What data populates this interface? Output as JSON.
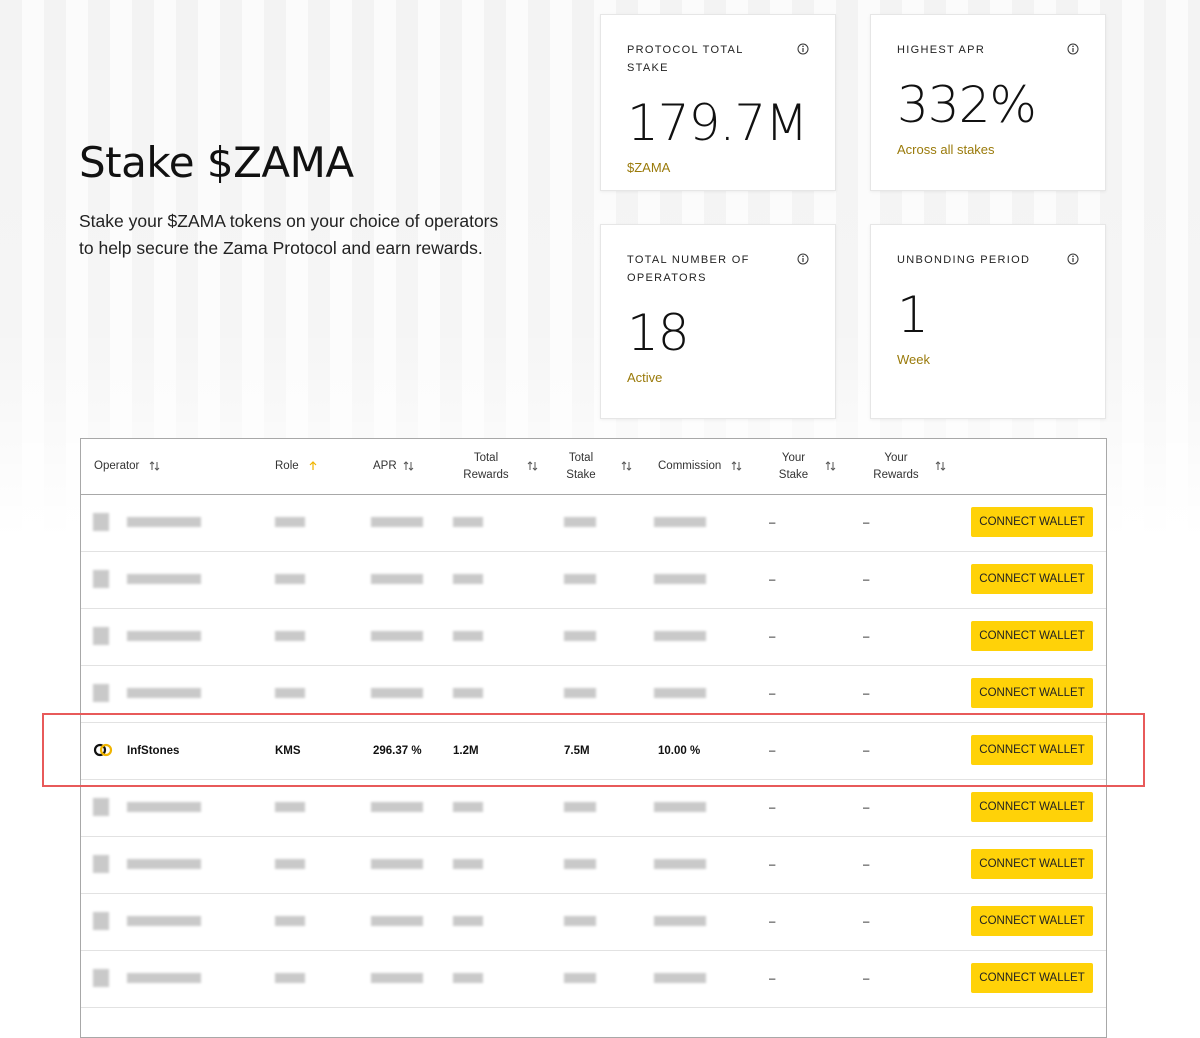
{
  "header": {
    "title": "Stake $ZAMA",
    "description": "Stake your $ZAMA tokens on your choice of operators to help secure the Zama Protocol and earn rewards."
  },
  "stats": [
    {
      "label": "PROTOCOL TOTAL STAKE",
      "value": "179.7M",
      "note": "$ZAMA"
    },
    {
      "label": "HIGHEST APR",
      "value": "332%",
      "note": "Across all stakes"
    },
    {
      "label": "TOTAL NUMBER OF OPERATORS",
      "value": "18",
      "note": "Active"
    },
    {
      "label": "UNBONDING PERIOD",
      "value": "1",
      "note": "Week"
    }
  ],
  "table": {
    "columns": [
      "Operator",
      "Role",
      "APR",
      "Total Rewards",
      "Total Stake",
      "Commission",
      "Your Stake",
      "Your Rewards"
    ],
    "rows": [
      {
        "your_stake": "–",
        "your_rewards": "–",
        "action": "CONNECT WALLET"
      },
      {
        "your_stake": "–",
        "your_rewards": "–",
        "action": "CONNECT WALLET"
      },
      {
        "your_stake": "–",
        "your_rewards": "–",
        "action": "CONNECT WALLET"
      },
      {
        "your_stake": "–",
        "your_rewards": "–",
        "action": "CONNECT WALLET"
      },
      {
        "operator": "InfStones",
        "role": "KMS",
        "apr": "296.37 %",
        "total_rewards": "1.2M",
        "total_stake": "7.5M",
        "commission": "10.00 %",
        "your_stake": "–",
        "your_rewards": "–",
        "action": "CONNECT WALLET"
      },
      {
        "your_stake": "–",
        "your_rewards": "–",
        "action": "CONNECT WALLET"
      },
      {
        "your_stake": "–",
        "your_rewards": "–",
        "action": "CONNECT WALLET"
      },
      {
        "your_stake": "–",
        "your_rewards": "–",
        "action": "CONNECT WALLET"
      },
      {
        "your_stake": "–",
        "your_rewards": "–",
        "action": "CONNECT WALLET"
      }
    ]
  }
}
